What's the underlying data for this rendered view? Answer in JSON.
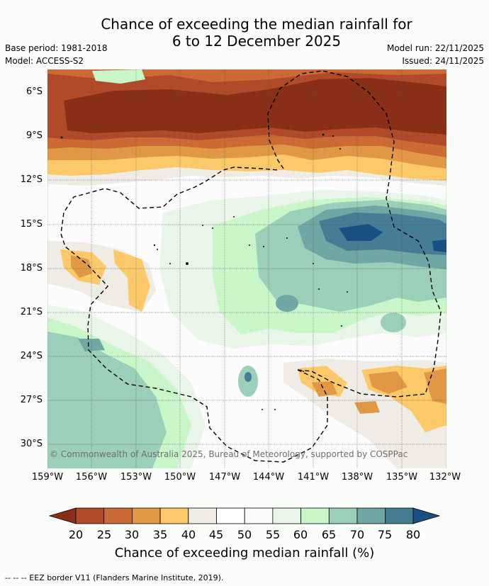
{
  "header": {
    "title_line1": "Chance of exceeding the median rainfall for",
    "title_line2": "6 to 12 December 2025",
    "base_period": "Base period: 1981-2018",
    "model": "Model: ACCESS-S2",
    "model_run": "Model run: 22/11/2025",
    "issued": "Issued: 24/11/2025"
  },
  "map": {
    "lat_labels": [
      "6°S",
      "9°S",
      "12°S",
      "15°S",
      "18°S",
      "21°S",
      "24°S",
      "27°S",
      "30°S"
    ],
    "lon_labels": [
      "159°W",
      "156°W",
      "153°W",
      "150°W",
      "147°W",
      "144°W",
      "141°W",
      "138°W",
      "135°W",
      "132°W"
    ],
    "copyright": "© Commonwealth of Australia 2025, Bureau of Meteorology, supported by COSPPac"
  },
  "colorbar": {
    "labels": [
      "20",
      "25",
      "30",
      "35",
      "40",
      "45",
      "50",
      "55",
      "60",
      "65",
      "70",
      "75",
      "80"
    ],
    "colors": [
      "#8a2f17",
      "#b04a28",
      "#cb6a34",
      "#e09847",
      "#fbc96a",
      "#efece6",
      "#ffffff",
      "#fbfcfb",
      "#e8f5e8",
      "#c9f6c9",
      "#9ccfb9",
      "#6fa7a4",
      "#457d95",
      "#1a4f82"
    ],
    "title": "Chance of exceeding median rainfall (%)"
  },
  "footer": {
    "legend": "--  --  -- EEZ border V11 (Flanders Marine Institute, 2019)."
  }
}
